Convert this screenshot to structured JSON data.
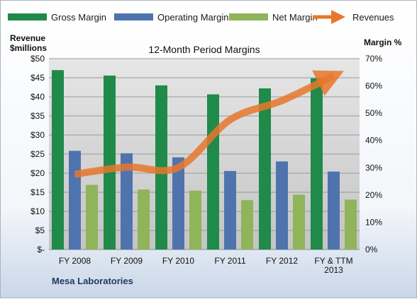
{
  "chart_data": {
    "type": "bar",
    "title": "12-Month Period Margins",
    "company": "Mesa Laboratories",
    "ylabel_left": [
      "Revenue",
      "$millions"
    ],
    "ylabel_right": "Margin %",
    "categories": [
      [
        "FY 2008"
      ],
      [
        "FY 2009"
      ],
      [
        "FY 2010"
      ],
      [
        "FY 2011"
      ],
      [
        "FY 2012"
      ],
      [
        "FY & TTM",
        "2013"
      ]
    ],
    "series": [
      {
        "name": "Gross Margin",
        "axis": "right",
        "color": "#1f8a4a",
        "values": [
          65.8,
          63.8,
          60.2,
          56.9,
          59.1,
          62.8
        ]
      },
      {
        "name": "Operating Margin",
        "axis": "right",
        "color": "#4f74ad",
        "values": [
          36.2,
          35.3,
          33.8,
          28.8,
          32.3,
          28.6
        ]
      },
      {
        "name": "Net Margin",
        "axis": "right",
        "color": "#8fb45a",
        "values": [
          23.7,
          22.0,
          21.6,
          18.1,
          20.1,
          18.3
        ]
      },
      {
        "name": "Revenues",
        "axis": "left",
        "type": "line",
        "color": "#e8772b",
        "values": [
          19.7,
          21.6,
          21.5,
          34.0,
          39.0,
          45.5
        ]
      }
    ],
    "left_axis": {
      "ylim": [
        0,
        50
      ],
      "ticks": [
        "$-",
        "$5",
        "$10",
        "$15",
        "$20",
        "$25",
        "$30",
        "$35",
        "$40",
        "$45",
        "$50"
      ]
    },
    "right_axis": {
      "ylim": [
        0,
        70
      ],
      "ticks": [
        "0%",
        "10%",
        "20%",
        "30%",
        "40%",
        "50%",
        "60%",
        "70%"
      ]
    },
    "grid": true,
    "legend_position": "top"
  }
}
